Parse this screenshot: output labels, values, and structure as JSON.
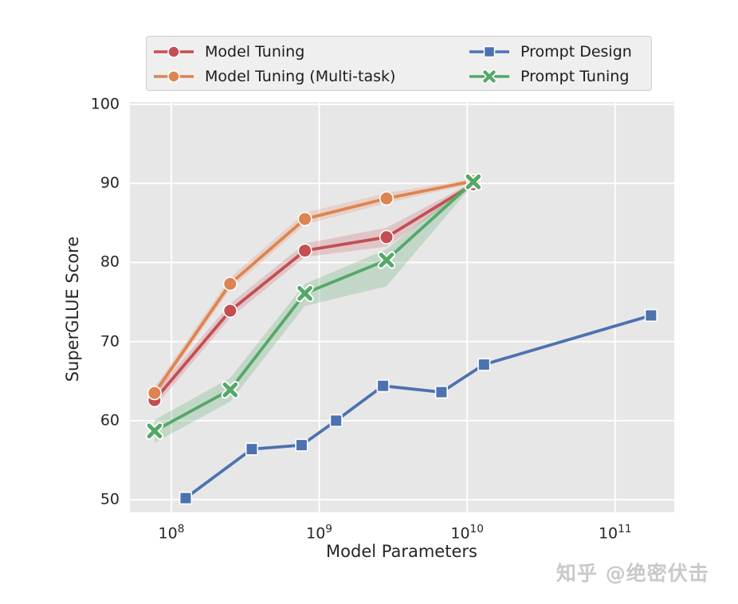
{
  "watermark": {
    "text": "知乎 @绝密伏击"
  },
  "chart_data": {
    "type": "line",
    "title": "",
    "xlabel": "Model Parameters",
    "ylabel": "SuperGLUE Score",
    "x_scale": "log10",
    "xlim_log10": [
      7.72,
      11.4
    ],
    "ylim": [
      48.4,
      100.3
    ],
    "x_tick_exponents": [
      8,
      9,
      10,
      11
    ],
    "x_tick_base": "10",
    "y_ticks": [
      50,
      60,
      70,
      80,
      90,
      100
    ],
    "grid": true,
    "plot_bg": "#e8e7e8",
    "gridline_color": "#ffffff",
    "legend_position": "upper center, outside axes, 2 columns",
    "series": [
      {
        "name": "Model Tuning",
        "color": "#C44E52",
        "marker": "circle",
        "band_opacity": 0.22,
        "x": [
          77000000,
          250000000,
          800000000,
          2850000000,
          11000000000
        ],
        "y": [
          62.6,
          73.9,
          81.5,
          83.2,
          89.9
        ],
        "band_upper": [
          63.5,
          74.8,
          82.4,
          84.4,
          90.2
        ],
        "band_lower": [
          61.7,
          73.0,
          80.7,
          82.0,
          89.6
        ]
      },
      {
        "name": "Model Tuning (Multi-task)",
        "color": "#DD8452",
        "marker": "circle",
        "band_opacity": 0.22,
        "x": [
          77000000,
          250000000,
          800000000,
          2850000000,
          11000000000
        ],
        "y": [
          63.5,
          77.3,
          85.5,
          88.1,
          90.3
        ],
        "band_upper": [
          64.2,
          78.1,
          86.3,
          88.8,
          90.6
        ],
        "band_lower": [
          62.9,
          76.6,
          84.8,
          87.5,
          90.0
        ]
      },
      {
        "name": "Prompt Design",
        "color": "#4C72B0",
        "marker": "square",
        "x": [
          125000000,
          350000000,
          760000000,
          1300000000,
          2700000000,
          6700000000,
          13000000000,
          175000000000
        ],
        "y": [
          50.2,
          56.4,
          56.9,
          60.0,
          64.4,
          63.6,
          67.1,
          73.3
        ]
      },
      {
        "name": "Prompt Tuning",
        "color": "#55A868",
        "marker": "x",
        "band_opacity": 0.25,
        "x": [
          77000000,
          250000000,
          800000000,
          2850000000,
          11000000000
        ],
        "y": [
          58.7,
          63.9,
          76.1,
          80.3,
          90.2
        ],
        "band_upper": [
          60.1,
          65.4,
          77.3,
          81.7,
          90.5
        ],
        "band_lower": [
          57.2,
          62.4,
          74.5,
          77.0,
          89.9
        ]
      }
    ]
  }
}
